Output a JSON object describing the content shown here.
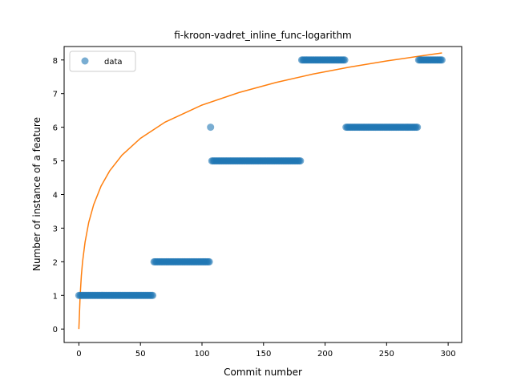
{
  "chart_data": {
    "type": "scatter",
    "title": "fi-kroon-vadret_inline_func-logarithm",
    "xlabel": "Commit number",
    "ylabel": "Number of instance of a feature",
    "xlim": [
      -12,
      311
    ],
    "ylim": [
      -0.4,
      8.4
    ],
    "xticks": [
      0,
      50,
      100,
      150,
      200,
      250,
      300
    ],
    "yticks": [
      0,
      1,
      2,
      3,
      4,
      5,
      6,
      7,
      8
    ],
    "grid": false,
    "legend": {
      "placement": "top-left",
      "entries": [
        "data"
      ]
    },
    "colors": {
      "data": "#1f77b4",
      "fit": "#ff7f0e"
    },
    "series": [
      {
        "name": "data",
        "kind": "points",
        "segments": [
          {
            "from": 0,
            "to": 60,
            "y": 1
          },
          {
            "from": 61,
            "to": 106,
            "y": 2
          },
          {
            "from": 107,
            "to": 107,
            "y": 6
          },
          {
            "from": 108,
            "to": 180,
            "y": 5
          },
          {
            "from": 181,
            "to": 216,
            "y": 8
          },
          {
            "from": 217,
            "to": 275,
            "y": 6
          },
          {
            "from": 276,
            "to": 295,
            "y": 8
          }
        ]
      },
      {
        "kind": "line",
        "x": [
          0,
          1,
          2,
          3,
          5,
          8,
          12,
          18,
          25,
          35,
          50,
          70,
          100,
          130,
          160,
          190,
          220,
          250,
          280,
          295
        ],
        "y": [
          0.0,
          1.0,
          1.59,
          2.0,
          2.58,
          3.17,
          3.7,
          4.25,
          4.7,
          5.17,
          5.67,
          6.15,
          6.66,
          7.03,
          7.33,
          7.58,
          7.79,
          7.97,
          8.13,
          8.21
        ]
      }
    ]
  }
}
